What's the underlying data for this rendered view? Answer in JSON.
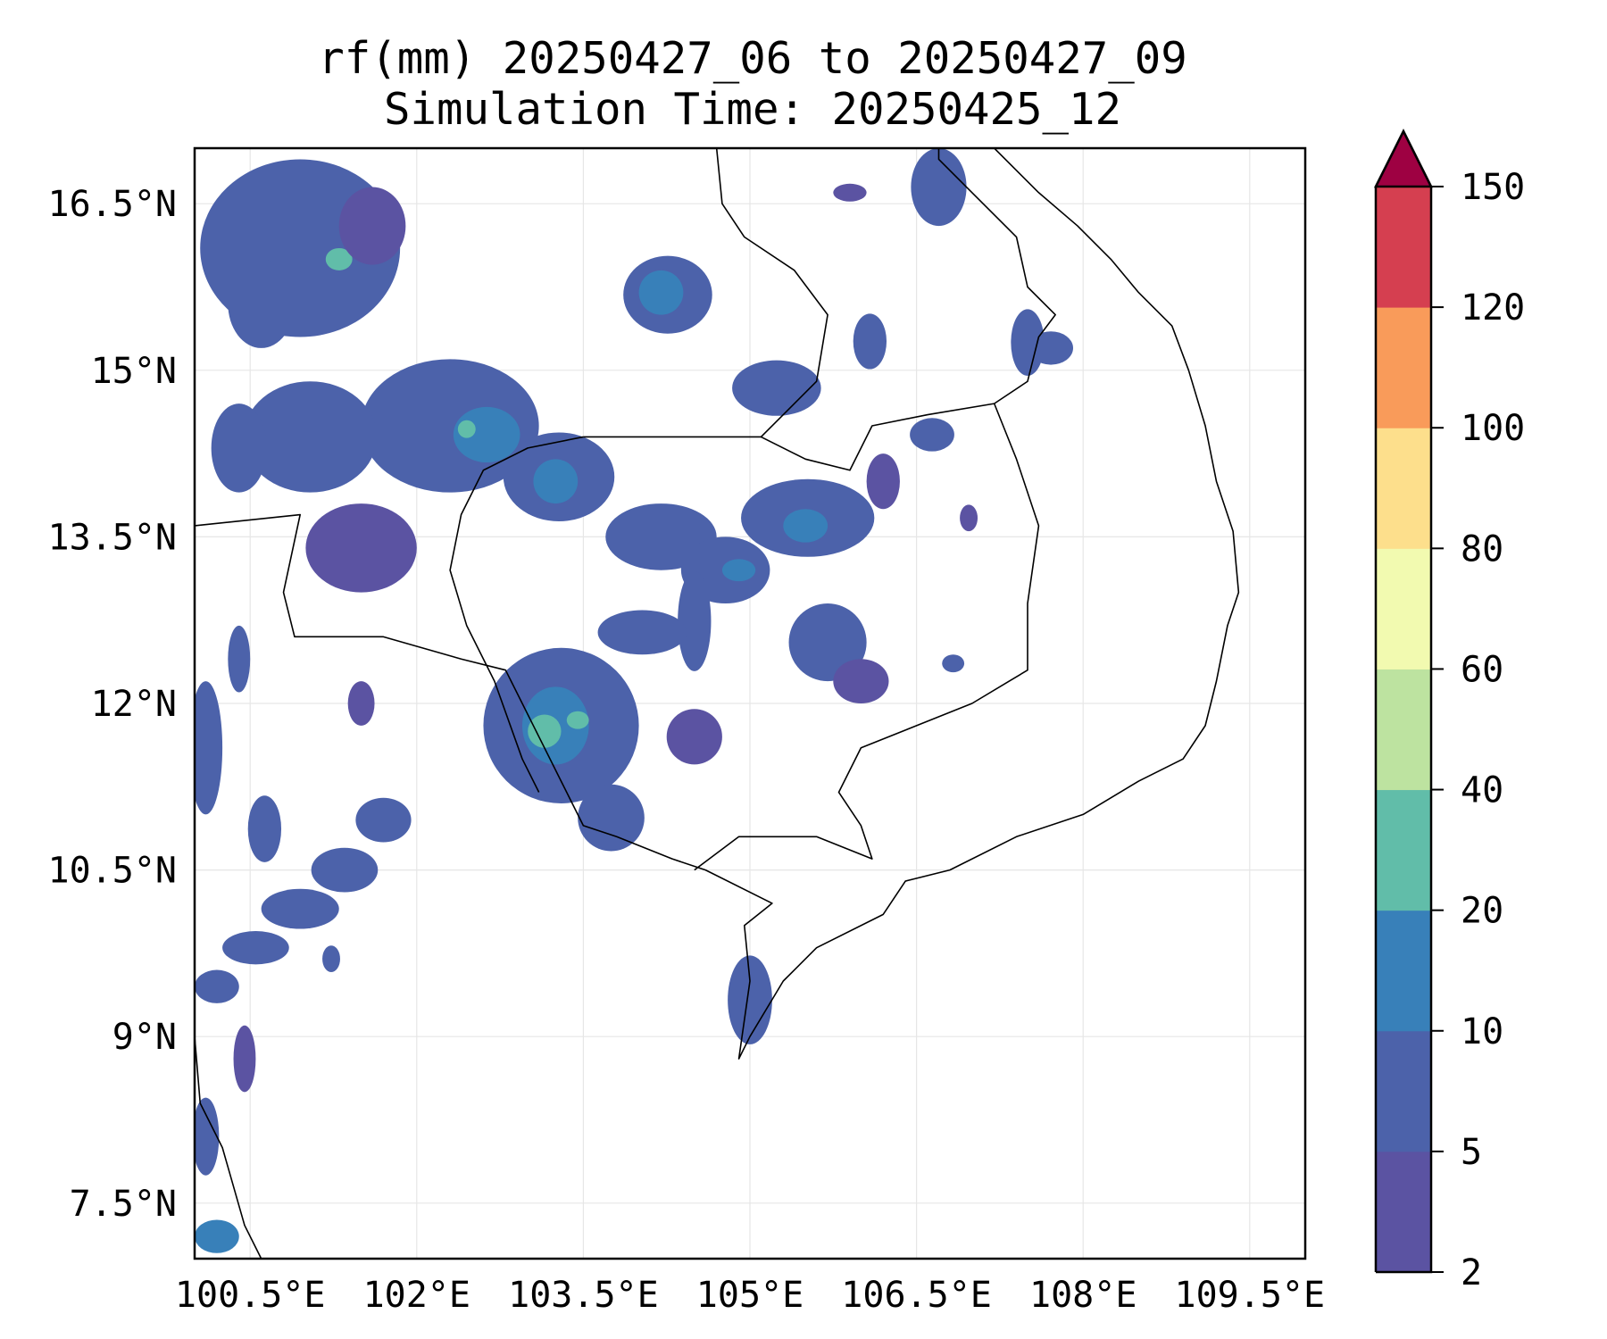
{
  "chart_data": {
    "type": "heatmap",
    "title": [
      "rf(mm) 20250427_06 to 20250427_09",
      "Simulation Time: 20250425_12"
    ],
    "xlabel": "",
    "ylabel": "",
    "xlim": [
      100,
      110
    ],
    "ylim": [
      7,
      17
    ],
    "grid": true,
    "x_ticks": [
      100.5,
      102,
      103.5,
      105,
      106.5,
      108,
      109.5
    ],
    "x_tick_labels": [
      "100.5°E",
      "102°E",
      "103.5°E",
      "105°E",
      "106.5°E",
      "108°E",
      "109.5°E"
    ],
    "y_ticks": [
      16.5,
      15,
      13.5,
      12,
      10.5,
      9,
      7.5
    ],
    "y_tick_labels": [
      "16.5°N",
      "15°N",
      "13.5°N",
      "12°N",
      "10.5°N",
      "9°N",
      "7.5°N"
    ],
    "colorbar": {
      "levels": [
        2,
        5,
        10,
        20,
        40,
        60,
        80,
        100,
        120,
        150
      ],
      "labels": [
        "2",
        "5",
        "10",
        "20",
        "40",
        "60",
        "80",
        "100",
        "120",
        "150"
      ],
      "colors": [
        "#5b53a2",
        "#4c62aa",
        "#3880b9",
        "#61bda9",
        "#bde3a0",
        "#f2fab0",
        "#fddf8c",
        "#f99b5a",
        "#d53f50"
      ],
      "extend_color": "#9e0142",
      "extend": "max",
      "placement": "right"
    },
    "rain_cells": [
      [
        100.95,
        16.1,
        0.9,
        0.8,
        1
      ],
      [
        101.3,
        16.0,
        0.12,
        0.1,
        3
      ],
      [
        100.6,
        15.6,
        0.3,
        0.4,
        1
      ],
      [
        101.6,
        16.3,
        0.3,
        0.35,
        0
      ],
      [
        104.26,
        15.68,
        0.4,
        0.35,
        1
      ],
      [
        104.2,
        15.7,
        0.2,
        0.2,
        2
      ],
      [
        105.24,
        14.84,
        0.4,
        0.25,
        1
      ],
      [
        102.3,
        14.5,
        0.8,
        0.6,
        1
      ],
      [
        102.63,
        14.42,
        0.3,
        0.25,
        2
      ],
      [
        102.45,
        14.47,
        0.08,
        0.08,
        3
      ],
      [
        103.28,
        14.04,
        0.5,
        0.4,
        1
      ],
      [
        103.25,
        14.0,
        0.2,
        0.2,
        2
      ],
      [
        101.04,
        14.4,
        0.6,
        0.5,
        1
      ],
      [
        101.5,
        13.4,
        0.5,
        0.4,
        0
      ],
      [
        100.4,
        14.3,
        0.25,
        0.4,
        1
      ],
      [
        104.2,
        13.5,
        0.5,
        0.3,
        1
      ],
      [
        105.52,
        13.67,
        0.6,
        0.35,
        1
      ],
      [
        105.5,
        13.6,
        0.2,
        0.15,
        2
      ],
      [
        104.78,
        13.2,
        0.4,
        0.3,
        1
      ],
      [
        104.9,
        13.2,
        0.15,
        0.1,
        2
      ],
      [
        104.5,
        12.74,
        0.15,
        0.45,
        1
      ],
      [
        104.03,
        12.64,
        0.4,
        0.2,
        1
      ],
      [
        105.7,
        12.55,
        0.35,
        0.35,
        1
      ],
      [
        106.0,
        12.2,
        0.25,
        0.2,
        0
      ],
      [
        103.3,
        11.8,
        0.7,
        0.7,
        1
      ],
      [
        103.25,
        11.8,
        0.3,
        0.35,
        2
      ],
      [
        103.15,
        11.75,
        0.15,
        0.15,
        3
      ],
      [
        103.45,
        11.85,
        0.1,
        0.08,
        3
      ],
      [
        103.75,
        10.97,
        0.3,
        0.3,
        1
      ],
      [
        104.5,
        11.7,
        0.25,
        0.25,
        0
      ],
      [
        100.2,
        9.45,
        0.2,
        0.15,
        1
      ],
      [
        100.55,
        9.8,
        0.3,
        0.15,
        1
      ],
      [
        100.95,
        10.15,
        0.35,
        0.18,
        1
      ],
      [
        101.35,
        10.5,
        0.3,
        0.2,
        1
      ],
      [
        101.7,
        10.95,
        0.25,
        0.2,
        1
      ],
      [
        100.63,
        10.87,
        0.15,
        0.3,
        1
      ],
      [
        100.1,
        11.6,
        0.15,
        0.6,
        1
      ],
      [
        100.4,
        12.4,
        0.1,
        0.3,
        1
      ],
      [
        101.5,
        12.0,
        0.12,
        0.2,
        0
      ],
      [
        105.0,
        9.33,
        0.2,
        0.4,
        1
      ],
      [
        100.1,
        8.1,
        0.12,
        0.35,
        1
      ],
      [
        100.2,
        7.2,
        0.2,
        0.15,
        2
      ],
      [
        100.45,
        8.8,
        0.1,
        0.3,
        0
      ],
      [
        106.7,
        16.65,
        0.25,
        0.35,
        1
      ],
      [
        107.5,
        15.25,
        0.15,
        0.3,
        1
      ],
      [
        107.71,
        15.2,
        0.2,
        0.15,
        1
      ],
      [
        106.64,
        14.42,
        0.2,
        0.15,
        1
      ],
      [
        106.08,
        15.26,
        0.15,
        0.25,
        1
      ],
      [
        101.23,
        9.7,
        0.08,
        0.12,
        1
      ],
      [
        106.83,
        12.36,
        0.1,
        0.08,
        1
      ],
      [
        106.97,
        13.67,
        0.08,
        0.12,
        0
      ],
      [
        106.2,
        14.0,
        0.15,
        0.25,
        0
      ],
      [
        105.9,
        16.6,
        0.15,
        0.08,
        0
      ]
    ],
    "coastline_and_borders": [
      [
        [
          107.2,
          17
        ],
        [
          107.6,
          16.6
        ],
        [
          107.95,
          16.3
        ],
        [
          108.25,
          16.0
        ],
        [
          108.5,
          15.7
        ],
        [
          108.8,
          15.4
        ],
        [
          108.95,
          15.0
        ],
        [
          109.1,
          14.5
        ],
        [
          109.2,
          14.0
        ],
        [
          109.35,
          13.55
        ],
        [
          109.4,
          13.0
        ],
        [
          109.3,
          12.7
        ],
        [
          109.2,
          12.2
        ],
        [
          109.1,
          11.8
        ],
        [
          108.9,
          11.5
        ],
        [
          108.5,
          11.3
        ],
        [
          108.0,
          11.0
        ],
        [
          107.4,
          10.8
        ],
        [
          106.8,
          10.5
        ],
        [
          106.4,
          10.4
        ],
        [
          106.2,
          10.1
        ],
        [
          105.6,
          9.8
        ],
        [
          105.3,
          9.5
        ],
        [
          105.0,
          9.0
        ],
        [
          104.9,
          8.8
        ],
        [
          105.0,
          9.5
        ],
        [
          104.95,
          10.0
        ],
        [
          105.2,
          10.2
        ],
        [
          104.6,
          10.5
        ],
        [
          104.3,
          10.6
        ],
        [
          103.8,
          10.8
        ],
        [
          103.5,
          10.9
        ],
        [
          103.3,
          11.3
        ],
        [
          103.1,
          11.7
        ],
        [
          102.8,
          12.3
        ],
        [
          102.4,
          12.4
        ],
        [
          101.7,
          12.6
        ],
        [
          100.9,
          12.6
        ],
        [
          100.8,
          13.0
        ],
        [
          100.95,
          13.7
        ],
        [
          100,
          13.6
        ]
      ],
      [
        [
          104.7,
          17
        ],
        [
          104.75,
          16.5
        ],
        [
          104.95,
          16.2
        ],
        [
          105.4,
          15.9
        ],
        [
          105.7,
          15.5
        ],
        [
          105.6,
          14.9
        ],
        [
          105.3,
          14.6
        ],
        [
          105.1,
          14.4
        ],
        [
          105.5,
          14.2
        ],
        [
          105.9,
          14.1
        ],
        [
          106.1,
          14.5
        ],
        [
          106.6,
          14.6
        ],
        [
          107.2,
          14.7
        ],
        [
          107.5,
          14.9
        ],
        [
          107.6,
          15.3
        ],
        [
          107.75,
          15.5
        ],
        [
          107.5,
          15.75
        ],
        [
          107.4,
          16.2
        ],
        [
          107.0,
          16.6
        ],
        [
          106.7,
          16.9
        ],
        [
          106.7,
          17
        ]
      ],
      [
        [
          103.5,
          14.4
        ],
        [
          103.0,
          14.3
        ],
        [
          102.6,
          14.1
        ],
        [
          102.4,
          13.7
        ],
        [
          102.3,
          13.2
        ],
        [
          102.45,
          12.7
        ],
        [
          102.7,
          12.2
        ],
        [
          102.95,
          11.5
        ],
        [
          103.1,
          11.2
        ]
      ],
      [
        [
          103.5,
          14.4
        ],
        [
          104.2,
          14.4
        ],
        [
          105.1,
          14.4
        ]
      ],
      [
        [
          107.2,
          14.7
        ],
        [
          107.4,
          14.2
        ],
        [
          107.6,
          13.6
        ],
        [
          107.5,
          12.9
        ],
        [
          107.5,
          12.3
        ],
        [
          107.0,
          12.0
        ],
        [
          106.5,
          11.8
        ],
        [
          106.0,
          11.6
        ],
        [
          105.8,
          11.2
        ],
        [
          106.0,
          10.9
        ],
        [
          106.1,
          10.6
        ],
        [
          105.6,
          10.8
        ],
        [
          104.9,
          10.8
        ],
        [
          104.5,
          10.5
        ]
      ],
      [
        [
          100,
          9.0
        ],
        [
          100.05,
          8.4
        ],
        [
          100.25,
          8.0
        ],
        [
          100.45,
          7.3
        ],
        [
          100.6,
          7.0
        ]
      ]
    ]
  }
}
